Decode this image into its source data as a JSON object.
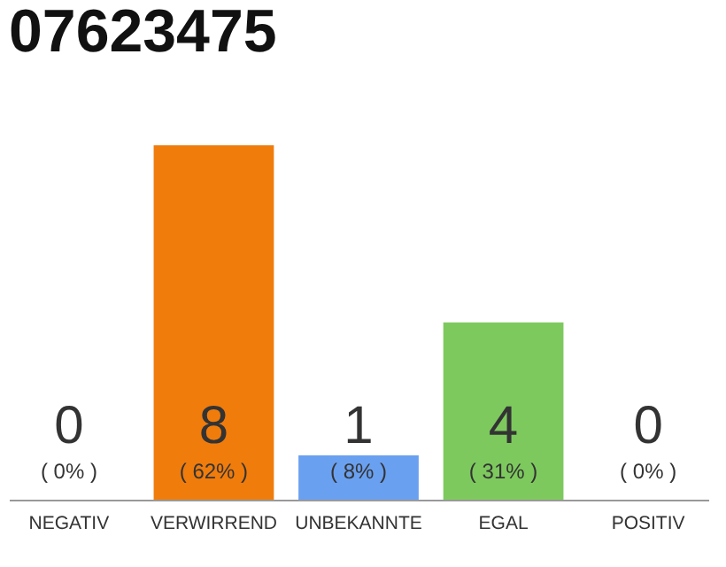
{
  "chart_data": {
    "type": "bar",
    "title": "07623475",
    "categories": [
      "NEGATIV",
      "VERWIRREND",
      "UNBEKANNTE",
      "EGAL",
      "POSITIV"
    ],
    "values": [
      0,
      8,
      1,
      4,
      0
    ],
    "colors": [
      "#cccccc",
      "#f07c0c",
      "#6aa0f0",
      "#7dc95e",
      "#cccccc"
    ],
    "data_labels": true,
    "annotations": [
      "( 0% )",
      "( 62% )",
      "( 8% )",
      "( 31% )",
      "( 0% )"
    ]
  }
}
